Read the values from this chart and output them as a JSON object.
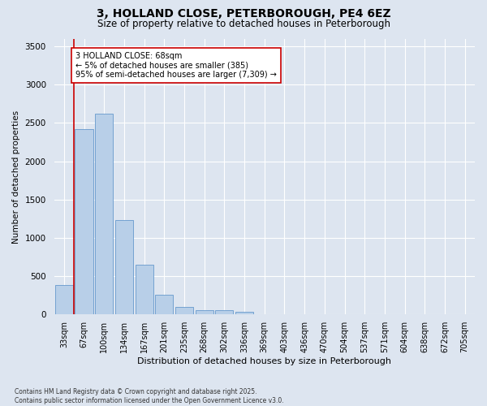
{
  "title_line1": "3, HOLLAND CLOSE, PETERBOROUGH, PE4 6EZ",
  "title_line2": "Size of property relative to detached houses in Peterborough",
  "xlabel": "Distribution of detached houses by size in Peterborough",
  "ylabel": "Number of detached properties",
  "categories": [
    "33sqm",
    "67sqm",
    "100sqm",
    "134sqm",
    "167sqm",
    "201sqm",
    "235sqm",
    "268sqm",
    "302sqm",
    "336sqm",
    "369sqm",
    "403sqm",
    "436sqm",
    "470sqm",
    "504sqm",
    "537sqm",
    "571sqm",
    "604sqm",
    "638sqm",
    "672sqm",
    "705sqm"
  ],
  "values": [
    385,
    2420,
    2620,
    1230,
    650,
    260,
    95,
    60,
    55,
    40,
    0,
    0,
    0,
    0,
    0,
    0,
    0,
    0,
    0,
    0,
    0
  ],
  "bar_color": "#b8cfe8",
  "bar_edge_color": "#6699cc",
  "vline_color": "#cc0000",
  "annotation_text": "3 HOLLAND CLOSE: 68sqm\n← 5% of detached houses are smaller (385)\n95% of semi-detached houses are larger (7,309) →",
  "annotation_box_color": "#ffffff",
  "annotation_box_edge": "#cc0000",
  "ylim": [
    0,
    3600
  ],
  "yticks": [
    0,
    500,
    1000,
    1500,
    2000,
    2500,
    3000,
    3500
  ],
  "bg_color": "#dde5f0",
  "grid_color": "#ffffff",
  "footnote": "Contains HM Land Registry data © Crown copyright and database right 2025.\nContains public sector information licensed under the Open Government Licence v3.0."
}
